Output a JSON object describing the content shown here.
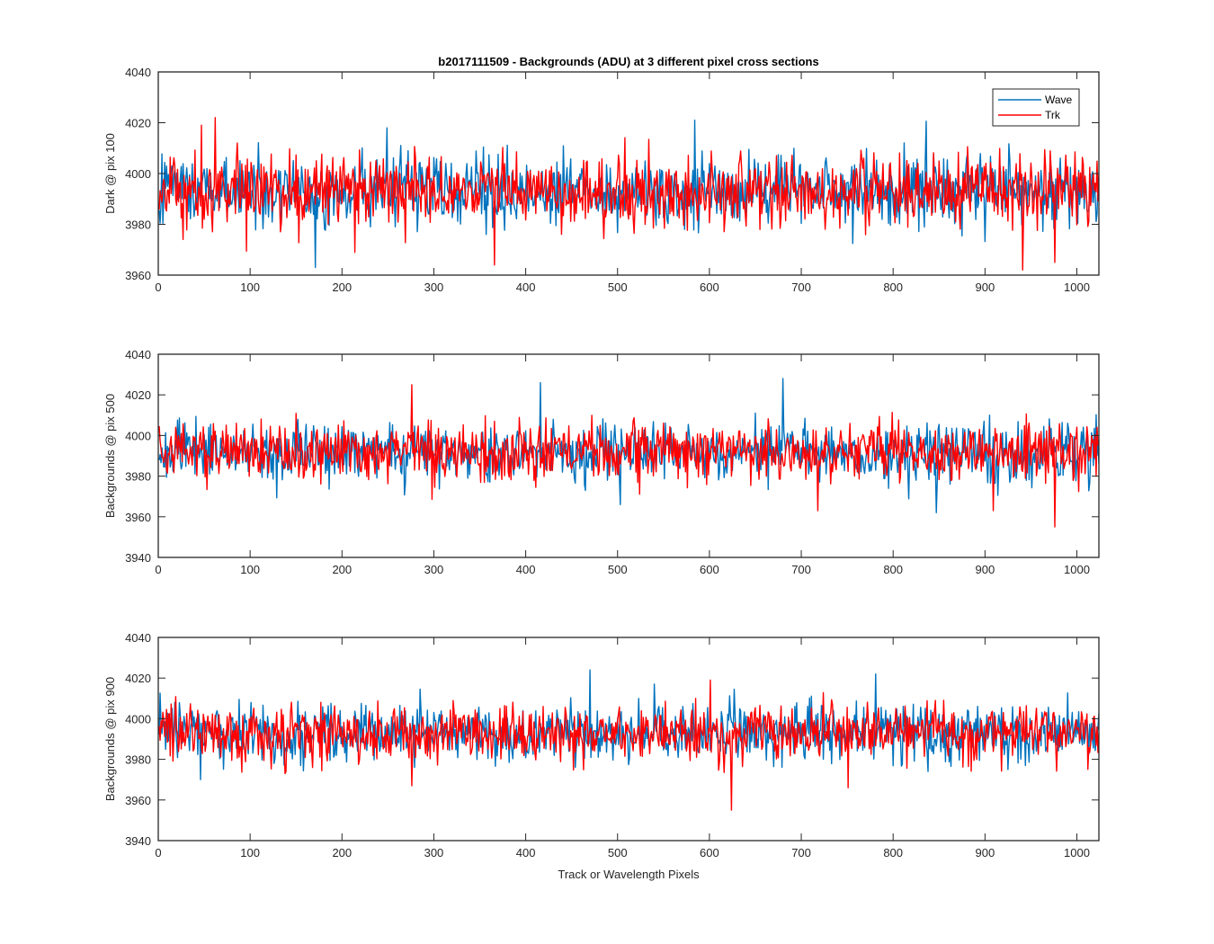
{
  "chart_data": {
    "type": "line",
    "title": "b2017111509 - Backgrounds (ADU) at 3 different pixel cross sections",
    "xlabel": "Track or Wavelength Pixels",
    "xlim": [
      0,
      1024
    ],
    "xticks": [
      0,
      100,
      200,
      300,
      400,
      500,
      600,
      700,
      800,
      900,
      1000
    ],
    "legend": {
      "placement": "top-right",
      "entries": [
        "Wave",
        "Trk"
      ]
    },
    "colors": {
      "Wave": "#0072BD",
      "Trk": "#FF0000"
    },
    "grid": false,
    "panels": [
      {
        "ylabel": "Dark @ pix 100",
        "ylim": [
          3960,
          4040
        ],
        "yticks": [
          3960,
          3980,
          4000,
          4020,
          4040
        ],
        "series": [
          {
            "name": "Wave",
            "points": 1024,
            "mean": 3993,
            "std": 7,
            "extremes": [
              [
                170,
                3963
              ],
              [
                583,
                4021
              ],
              [
                248,
                4018
              ]
            ]
          },
          {
            "name": "Trk",
            "points": 1024,
            "mean": 3993,
            "std": 7,
            "extremes": [
              [
                61,
                4022
              ],
              [
                46,
                4019
              ],
              [
                940,
                3962
              ],
              [
                365,
                3964
              ],
              [
                975,
                3965
              ]
            ]
          }
        ]
      },
      {
        "ylabel": "Backgrounds @ pix 500",
        "ylim": [
          3940,
          4040
        ],
        "yticks": [
          3940,
          3960,
          3980,
          4000,
          4020,
          4040
        ],
        "series": [
          {
            "name": "Wave",
            "points": 1024,
            "mean": 3992,
            "std": 7,
            "extremes": [
              [
                679,
                4028
              ],
              [
                415,
                4026
              ],
              [
                846,
                3962
              ],
              [
                502,
                3966
              ]
            ]
          },
          {
            "name": "Trk",
            "points": 1024,
            "mean": 3992,
            "std": 7,
            "extremes": [
              [
                275,
                4025
              ],
              [
                975,
                3955
              ],
              [
                717,
                3963
              ],
              [
                908,
                3963
              ]
            ]
          }
        ]
      },
      {
        "ylabel": "Backgrounds @ pix 900",
        "ylim": [
          3940,
          4040
        ],
        "yticks": [
          3940,
          3960,
          3980,
          4000,
          4020,
          4040
        ],
        "series": [
          {
            "name": "Wave",
            "points": 1024,
            "mean": 3993,
            "std": 7,
            "extremes": [
              [
                469,
                4024
              ],
              [
                780,
                4022
              ],
              [
                45,
                3970
              ]
            ]
          },
          {
            "name": "Trk",
            "points": 1024,
            "mean": 3993,
            "std": 7,
            "extremes": [
              [
                623,
                3955
              ],
              [
                600,
                4019
              ],
              [
                275,
                3967
              ],
              [
                750,
                3966
              ]
            ]
          }
        ]
      }
    ]
  }
}
